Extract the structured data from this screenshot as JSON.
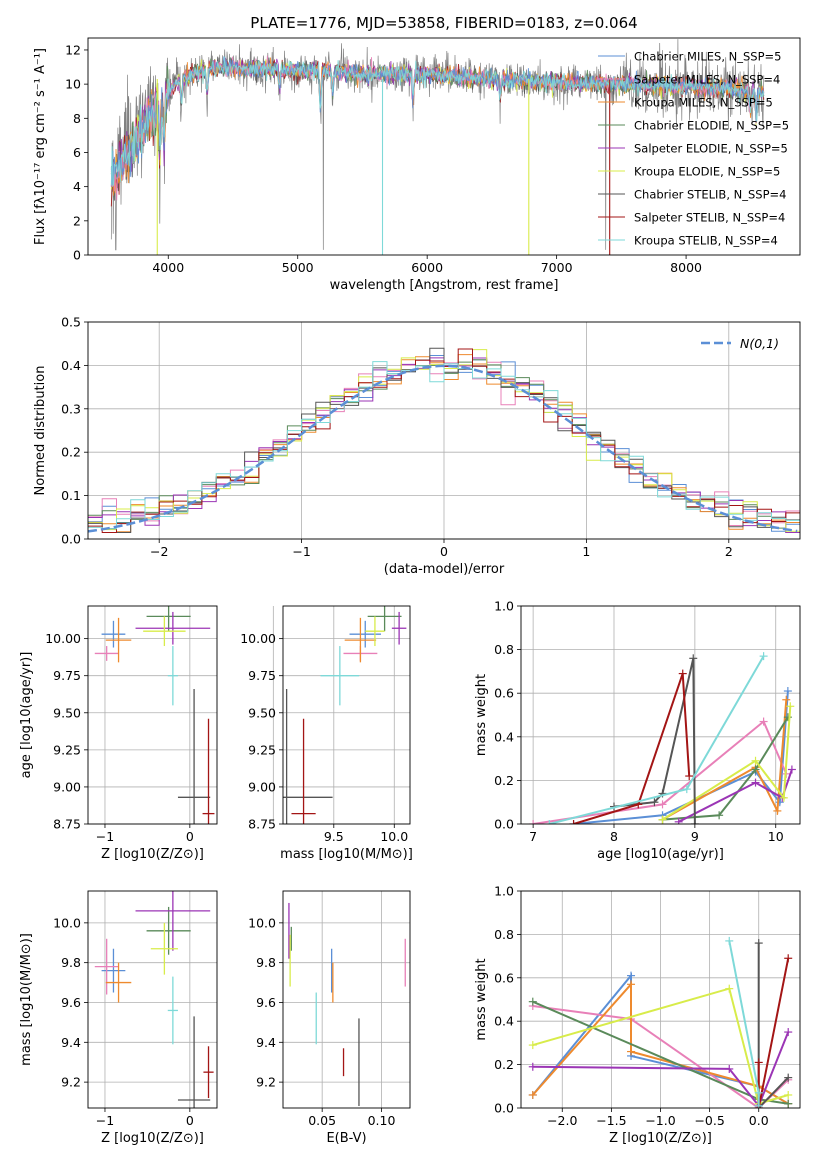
{
  "colors": {
    "chabrier_miles": "#5b8fd6",
    "salpeter_miles": "#e880b8",
    "kroupa_miles": "#ee8a2e",
    "chabrier_elodie": "#5a8a5a",
    "salpeter_elodie": "#9b35b5",
    "kroupa_elodie": "#d8ec4a",
    "chabrier_stelib": "#555555",
    "salpeter_stelib": "#a31515",
    "kroupa_stelib": "#7ed9d8",
    "data": "#808080",
    "gaussian": "#5b8fd6"
  },
  "chart_data": [
    {
      "id": "spectrum",
      "type": "line",
      "title": "PLATE=1776, MJD=53858, FIBERID=0183, z=0.064",
      "xlabel": "wavelength [Angstrom, rest frame]",
      "ylabel": "Flux [fλ10⁻¹⁷ erg cm⁻² s⁻¹ A⁻¹]",
      "xlim": [
        3380,
        8880
      ],
      "ylim": [
        0,
        12.7
      ],
      "xticks": [
        4000,
        5000,
        6000,
        7000,
        8000
      ],
      "yticks": [
        0,
        2,
        4,
        6,
        8,
        10,
        12
      ],
      "grid": false,
      "legend_position": "top-right",
      "legend": [
        {
          "label": "Chabrier MILES, N_SSP=5",
          "color_key": "chabrier_miles"
        },
        {
          "label": "Salpeter MILES, N_SSP=4",
          "color_key": "salpeter_miles"
        },
        {
          "label": "Kroupa MILES, N_SSP=5",
          "color_key": "kroupa_miles"
        },
        {
          "label": "Chabrier ELODIE, N_SSP=5",
          "color_key": "chabrier_elodie"
        },
        {
          "label": "Salpeter ELODIE, N_SSP=5",
          "color_key": "salpeter_elodie"
        },
        {
          "label": "Kroupa ELODIE, N_SSP=5",
          "color_key": "kroupa_elodie"
        },
        {
          "label": "Chabrier STELIB, N_SSP=4",
          "color_key": "chabrier_stelib"
        },
        {
          "label": "Salpeter STELIB, N_SSP=4",
          "color_key": "salpeter_stelib"
        },
        {
          "label": "Kroupa STELIB, N_SSP=4",
          "color_key": "kroupa_stelib"
        }
      ],
      "continuum": {
        "x": [
          3560,
          3650,
          3750,
          3850,
          3950,
          4050,
          4200,
          4400,
          4600,
          4800,
          5000,
          5200,
          5500,
          6000,
          6500,
          7000,
          7500,
          8000,
          8500
        ],
        "y": [
          4.5,
          5.5,
          6.8,
          8.0,
          9.0,
          10.0,
          10.7,
          11.0,
          10.9,
          10.9,
          10.8,
          10.8,
          10.6,
          10.6,
          10.3,
          10.1,
          10.0,
          9.9,
          9.6
        ]
      },
      "absorption_features": [
        {
          "x": 3934,
          "depth": 3.5
        },
        {
          "x": 3968,
          "depth": 3.0
        },
        {
          "x": 4102,
          "depth": 1.6
        },
        {
          "x": 4300,
          "depth": 1.5
        },
        {
          "x": 4861,
          "depth": 1.2
        },
        {
          "x": 5175,
          "depth": 2.5
        },
        {
          "x": 5270,
          "depth": 1.5
        },
        {
          "x": 5890,
          "depth": 2.0
        },
        {
          "x": 6563,
          "depth": 1.2
        },
        {
          "x": 8498,
          "depth": 1.4
        },
        {
          "x": 8542,
          "depth": 1.8
        },
        {
          "x": 8662,
          "depth": 1.8
        }
      ],
      "masked_drops": [
        {
          "x": 3915,
          "color_key": "kroupa_elodie"
        },
        {
          "x": 5655,
          "color_key": "kroupa_stelib"
        },
        {
          "x": 6785,
          "color_key": "kroupa_elodie"
        },
        {
          "x": 7410,
          "color_key": "salpeter_stelib"
        }
      ]
    },
    {
      "id": "residuals",
      "type": "area",
      "xlabel": "(data-model)/error",
      "ylabel": "Normed distribution",
      "xlim": [
        -2.5,
        2.5
      ],
      "ylim": [
        0,
        0.5
      ],
      "xticks": [
        -2,
        -1,
        0,
        1,
        2
      ],
      "yticks": [
        0.0,
        0.1,
        0.2,
        0.3,
        0.4,
        0.5
      ],
      "grid": true,
      "legend_position": "top-right",
      "legend": [
        {
          "label": "N(0,1)",
          "color_key": "gaussian"
        }
      ],
      "bin_width": 0.1
    },
    {
      "id": "age_vs_Z",
      "type": "scatter",
      "xlabel": "Z [log10(Z/Z⊙)]",
      "ylabel": "age  [log10(age/yr)]",
      "xlim": [
        -1.2,
        0.32
      ],
      "ylim": [
        8.75,
        10.22
      ],
      "xticks": [
        -1,
        0
      ],
      "yticks": [
        8.75,
        9.0,
        9.25,
        9.5,
        9.75,
        10.0
      ],
      "grid": true,
      "points": [
        {
          "x": -0.9,
          "y": 10.03,
          "xerr": 0.14,
          "yerr": 0.09,
          "color_key": "chabrier_miles"
        },
        {
          "x": -0.98,
          "y": 9.9,
          "xerr": 0.14,
          "yerr": 0.05,
          "color_key": "salpeter_miles"
        },
        {
          "x": -0.84,
          "y": 9.99,
          "xerr": 0.15,
          "yerr": 0.15,
          "color_key": "kroupa_miles"
        },
        {
          "x": -0.25,
          "y": 10.15,
          "xerr": 0.26,
          "yerr": 0.1,
          "color_key": "chabrier_elodie"
        },
        {
          "x": -0.2,
          "y": 10.07,
          "xerr": 0.44,
          "yerr": 0.11,
          "color_key": "salpeter_elodie"
        },
        {
          "x": -0.3,
          "y": 10.05,
          "xerr": 0.25,
          "yerr": 0.1,
          "color_key": "kroupa_elodie"
        },
        {
          "x": 0.05,
          "y": 8.93,
          "xerr": 0.19,
          "yerr": 0.73,
          "color_key": "chabrier_stelib"
        },
        {
          "x": 0.22,
          "y": 8.82,
          "xerr": 0.07,
          "yerr": 0.64,
          "color_key": "salpeter_stelib"
        },
        {
          "x": -0.2,
          "y": 9.75,
          "xerr": 0.06,
          "yerr": 0.2,
          "color_key": "kroupa_stelib"
        }
      ]
    },
    {
      "id": "age_vs_mass",
      "type": "scatter",
      "xlabel": "mass [log10(M/M⊙)]",
      "ylabel": "",
      "xlim": [
        9.08,
        10.13
      ],
      "ylim": [
        8.75,
        10.22
      ],
      "xticks": [
        9.0,
        9.5,
        10.0
      ],
      "yticks": [
        8.75,
        9.0,
        9.25,
        9.5,
        9.75,
        10.0
      ],
      "grid": true,
      "points": [
        {
          "x": 9.76,
          "y": 10.03,
          "xerr": 0.13,
          "yerr": 0.09,
          "color_key": "chabrier_miles"
        },
        {
          "x": 9.72,
          "y": 9.9,
          "xerr": 0.14,
          "yerr": 0.05,
          "color_key": "salpeter_miles"
        },
        {
          "x": 9.72,
          "y": 9.99,
          "xerr": 0.13,
          "yerr": 0.15,
          "color_key": "kroupa_miles"
        },
        {
          "x": 9.92,
          "y": 10.15,
          "xerr": 0.14,
          "yerr": 0.1,
          "color_key": "chabrier_elodie"
        },
        {
          "x": 10.04,
          "y": 10.07,
          "xerr": 0.06,
          "yerr": 0.11,
          "color_key": "salpeter_elodie"
        },
        {
          "x": 9.84,
          "y": 10.05,
          "xerr": 0.08,
          "yerr": 0.1,
          "color_key": "kroupa_elodie"
        },
        {
          "x": 9.11,
          "y": 8.93,
          "xerr": 0.38,
          "yerr": 0.73,
          "color_key": "chabrier_stelib"
        },
        {
          "x": 9.25,
          "y": 8.82,
          "xerr": 0.1,
          "yerr": 0.64,
          "color_key": "salpeter_stelib"
        },
        {
          "x": 9.55,
          "y": 9.75,
          "xerr": 0.16,
          "yerr": 0.2,
          "color_key": "kroupa_stelib"
        }
      ]
    },
    {
      "id": "weight_vs_age",
      "type": "line",
      "xlabel": "age  [log10(age/yr)]",
      "ylabel": "mass weight",
      "xlim": [
        6.85,
        10.3
      ],
      "ylim": [
        0,
        1.0
      ],
      "xticks": [
        7,
        8,
        9,
        10
      ],
      "yticks": [
        0.0,
        0.2,
        0.4,
        0.6,
        0.8,
        1.0
      ],
      "grid": true,
      "series": [
        {
          "color_key": "chabrier_miles",
          "points": [
            [
              7.5,
              0.0
            ],
            [
              8.6,
              0.04
            ],
            [
              9.75,
              0.24
            ],
            [
              10.05,
              0.1
            ],
            [
              10.15,
              0.61
            ]
          ]
        },
        {
          "color_key": "salpeter_miles",
          "points": [
            [
              7.0,
              0.0
            ],
            [
              8.6,
              0.09
            ],
            [
              9.85,
              0.47
            ],
            [
              10.13,
              0.23
            ]
          ]
        },
        {
          "color_key": "kroupa_miles",
          "points": [
            [
              8.6,
              0.02
            ],
            [
              9.75,
              0.26
            ],
            [
              10.02,
              0.06
            ],
            [
              10.13,
              0.57
            ]
          ]
        },
        {
          "color_key": "chabrier_elodie",
          "points": [
            [
              8.6,
              0.02
            ],
            [
              9.3,
              0.04
            ],
            [
              9.75,
              0.25
            ],
            [
              10.15,
              0.49
            ]
          ]
        },
        {
          "color_key": "salpeter_elodie",
          "points": [
            [
              8.8,
              0.01
            ],
            [
              9.75,
              0.19
            ],
            [
              10.08,
              0.12
            ],
            [
              10.2,
              0.25
            ]
          ]
        },
        {
          "color_key": "kroupa_elodie",
          "points": [
            [
              8.6,
              0.02
            ],
            [
              9.75,
              0.29
            ],
            [
              10.1,
              0.12
            ],
            [
              10.18,
              0.54
            ]
          ]
        },
        {
          "color_key": "chabrier_stelib",
          "points": [
            [
              8.0,
              0.08
            ],
            [
              8.5,
              0.1
            ],
            [
              8.6,
              0.14
            ],
            [
              8.98,
              0.76
            ],
            [
              9.0,
              0.0
            ]
          ]
        },
        {
          "color_key": "salpeter_stelib",
          "points": [
            [
              7.5,
              0.0
            ],
            [
              8.3,
              0.09
            ],
            [
              8.85,
              0.69
            ],
            [
              8.93,
              0.22
            ]
          ]
        },
        {
          "color_key": "kroupa_stelib",
          "points": [
            [
              7.2,
              0.0
            ],
            [
              8.9,
              0.16
            ],
            [
              9.85,
              0.77
            ]
          ]
        }
      ]
    },
    {
      "id": "mass_vs_Z",
      "type": "scatter",
      "xlabel": "Z [log10(Z/Z⊙)]",
      "ylabel": "mass [log10(M/M⊙)]",
      "xlim": [
        -1.2,
        0.32
      ],
      "ylim": [
        9.07,
        10.16
      ],
      "xticks": [
        -1,
        0
      ],
      "yticks": [
        9.2,
        9.4,
        9.6,
        9.8,
        10.0
      ],
      "grid": true,
      "points": [
        {
          "x": -0.9,
          "y": 9.76,
          "xerr": 0.14,
          "yerr": 0.11,
          "color_key": "chabrier_miles"
        },
        {
          "x": -0.98,
          "y": 9.78,
          "xerr": 0.14,
          "yerr": 0.14,
          "color_key": "salpeter_miles"
        },
        {
          "x": -0.84,
          "y": 9.7,
          "xerr": 0.15,
          "yerr": 0.1,
          "color_key": "kroupa_miles"
        },
        {
          "x": -0.25,
          "y": 9.96,
          "xerr": 0.26,
          "yerr": 0.12,
          "color_key": "chabrier_elodie"
        },
        {
          "x": -0.2,
          "y": 10.06,
          "xerr": 0.44,
          "yerr": 0.2,
          "color_key": "salpeter_elodie"
        },
        {
          "x": -0.3,
          "y": 9.87,
          "xerr": 0.16,
          "yerr": 0.13,
          "color_key": "kroupa_elodie"
        },
        {
          "x": 0.05,
          "y": 9.11,
          "xerr": 0.19,
          "yerr": 0.42,
          "color_key": "chabrier_stelib"
        },
        {
          "x": 0.22,
          "y": 9.25,
          "xerr": 0.06,
          "yerr": 0.13,
          "color_key": "salpeter_stelib"
        },
        {
          "x": -0.2,
          "y": 9.56,
          "xerr": 0.06,
          "yerr": 0.17,
          "color_key": "kroupa_stelib"
        }
      ]
    },
    {
      "id": "mass_vs_ebv",
      "type": "scatter",
      "xlabel": "E(B-V)",
      "ylabel": "",
      "xlim": [
        0.017,
        0.124
      ],
      "ylim": [
        9.07,
        10.16
      ],
      "xticks": [
        0.05,
        0.1
      ],
      "yticks": [
        9.2,
        9.4,
        9.6,
        9.8,
        10.0
      ],
      "grid": true,
      "points": [
        {
          "x": 0.058,
          "y": 9.76,
          "yerr": 0.11,
          "color_key": "chabrier_miles"
        },
        {
          "x": 0.12,
          "y": 9.8,
          "yerr": 0.12,
          "color_key": "salpeter_miles"
        },
        {
          "x": 0.059,
          "y": 9.7,
          "yerr": 0.1,
          "color_key": "kroupa_miles"
        },
        {
          "x": 0.024,
          "y": 9.92,
          "yerr": 0.06,
          "color_key": "chabrier_elodie"
        },
        {
          "x": 0.022,
          "y": 9.96,
          "yerr": 0.14,
          "color_key": "salpeter_elodie"
        },
        {
          "x": 0.023,
          "y": 9.81,
          "yerr": 0.13,
          "color_key": "kroupa_elodie"
        },
        {
          "x": 0.081,
          "y": 9.3,
          "yerr": 0.22,
          "color_key": "chabrier_stelib"
        },
        {
          "x": 0.068,
          "y": 9.3,
          "yerr": 0.07,
          "color_key": "salpeter_stelib"
        },
        {
          "x": 0.045,
          "y": 9.52,
          "yerr": 0.13,
          "color_key": "kroupa_stelib"
        }
      ]
    },
    {
      "id": "weight_vs_Z",
      "type": "line",
      "xlabel": "Z [log10(Z/Z⊙)]",
      "ylabel": "mass weight",
      "xlim": [
        -2.42,
        0.42
      ],
      "ylim": [
        0,
        1.0
      ],
      "xticks": [
        -2.0,
        -1.5,
        -1.0,
        -0.5,
        0.0
      ],
      "yticks": [
        0.0,
        0.2,
        0.4,
        0.6,
        0.8,
        1.0
      ],
      "grid": true,
      "series": [
        {
          "color_key": "chabrier_miles",
          "points": [
            [
              -2.3,
              0.06
            ],
            [
              -1.3,
              0.61
            ],
            [
              -1.3,
              0.24
            ],
            [
              0.0,
              0.1
            ],
            [
              0.3,
              0.02
            ]
          ]
        },
        {
          "color_key": "salpeter_miles",
          "points": [
            [
              -2.3,
              0.47
            ],
            [
              -1.3,
              0.41
            ],
            [
              0.0,
              0.0
            ],
            [
              0.3,
              0.13
            ]
          ]
        },
        {
          "color_key": "kroupa_miles",
          "points": [
            [
              -2.3,
              0.06
            ],
            [
              -1.3,
              0.57
            ],
            [
              -1.3,
              0.26
            ],
            [
              0.0,
              0.1
            ],
            [
              0.3,
              0.02
            ]
          ]
        },
        {
          "color_key": "chabrier_elodie",
          "points": [
            [
              -2.3,
              0.49
            ],
            [
              0.0,
              0.04
            ],
            [
              0.3,
              0.02
            ]
          ]
        },
        {
          "color_key": "salpeter_elodie",
          "points": [
            [
              -2.3,
              0.19
            ],
            [
              -0.3,
              0.18
            ],
            [
              0.0,
              0.01
            ],
            [
              0.3,
              0.35
            ]
          ]
        },
        {
          "color_key": "kroupa_elodie",
          "points": [
            [
              -2.3,
              0.29
            ],
            [
              -0.3,
              0.55
            ],
            [
              0.0,
              0.02
            ],
            [
              0.3,
              0.06
            ]
          ]
        },
        {
          "color_key": "chabrier_stelib",
          "points": [
            [
              0.0,
              0.76
            ],
            [
              0.0,
              0.0
            ],
            [
              0.3,
              0.14
            ]
          ]
        },
        {
          "color_key": "salpeter_stelib",
          "points": [
            [
              0.0,
              0.21
            ],
            [
              0.0,
              0.0
            ],
            [
              0.3,
              0.69
            ]
          ]
        },
        {
          "color_key": "kroupa_stelib",
          "points": [
            [
              -0.3,
              0.77
            ],
            [
              0.0,
              0.07
            ],
            [
              0.0,
              0.01
            ]
          ]
        }
      ]
    }
  ]
}
